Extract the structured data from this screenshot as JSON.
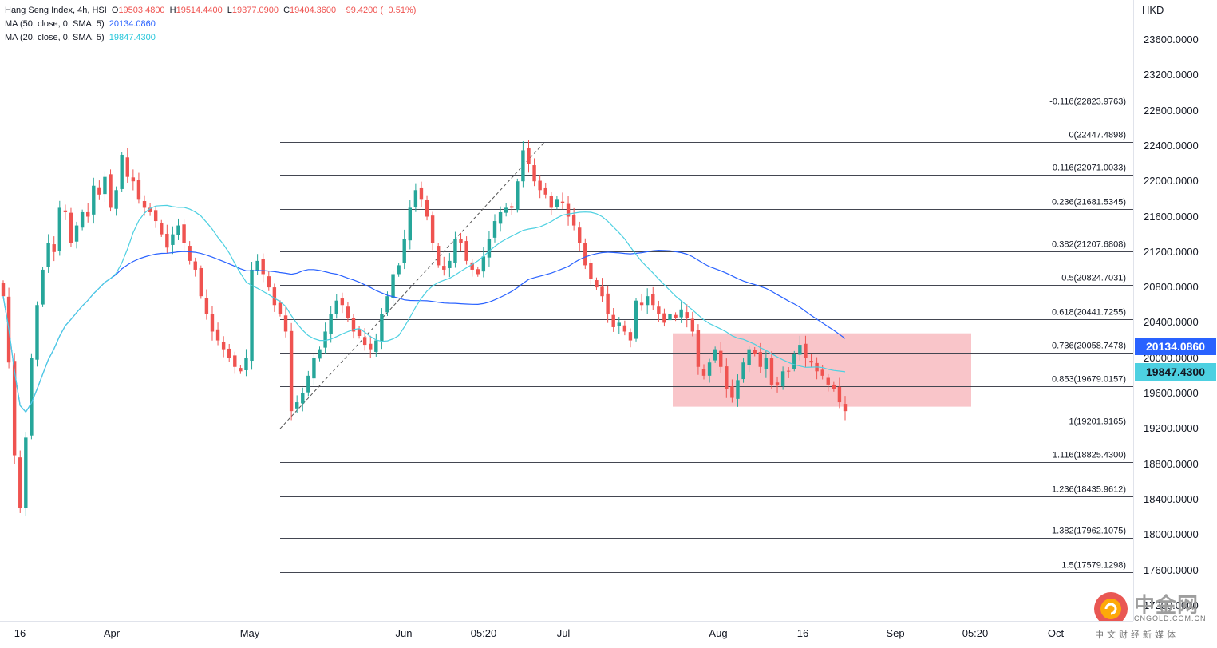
{
  "legend": {
    "title": "Hang Seng Index, 4h, HSI",
    "ohlc": [
      {
        "k": "O",
        "v": "19503.4800"
      },
      {
        "k": "H",
        "v": "19514.4400"
      },
      {
        "k": "L",
        "v": "19377.0900"
      },
      {
        "k": "C",
        "v": "19404.3600"
      }
    ],
    "change": "−99.4200 (−0.51%)",
    "ma50_label": "MA (50, close, 0, SMA, 5)",
    "ma50_value": "20134.0860",
    "ma20_label": "MA (20, close, 0, SMA, 5)",
    "ma20_value": "19847.4300"
  },
  "price_axis": {
    "unit": "HKD",
    "ticks": [
      "23600.0000",
      "23200.0000",
      "22800.0000",
      "22400.0000",
      "22000.0000",
      "21600.0000",
      "21200.0000",
      "20800.0000",
      "20400.0000",
      "20000.0000",
      "19600.0000",
      "19200.0000",
      "18800.0000",
      "18400.0000",
      "18000.0000",
      "17600.0000",
      "17200.0000"
    ],
    "tag_ma50": "20134.0860",
    "tag_ma20": "19847.4300"
  },
  "time_axis": {
    "labels": [
      "16",
      "Apr",
      "May",
      "Jun",
      "05:20",
      "Jul",
      "Aug",
      "16",
      "Sep",
      "05:20",
      "Oct"
    ]
  },
  "watermark": {
    "brand_cn": "中金网",
    "url": "CNGOLD.COM.CN",
    "sub_cn": "中文财经新媒体"
  },
  "colors": {
    "up": "#26a69a",
    "down": "#ef5350",
    "ma50": "#2962ff",
    "ma20": "#4dd0e1",
    "zone": "#f8bbbf"
  },
  "chart_data": {
    "type": "candlestick",
    "title": "Hang Seng Index, 4h, HSI",
    "ylabel": "HKD",
    "ylim": [
      17100,
      23800
    ],
    "x_labels": [
      "16",
      "Apr",
      "May",
      "Jun",
      "05:20",
      "Jul",
      "Aug",
      "16",
      "Sep",
      "05:20",
      "Oct"
    ],
    "fibonacci": [
      {
        "label": "-0.116(22823.9763)",
        "value": 22823.9763
      },
      {
        "label": "0(22447.4898)",
        "value": 22447.4898
      },
      {
        "label": "0.116(22071.0033)",
        "value": 22071.0033
      },
      {
        "label": "0.236(21681.5345)",
        "value": 21681.5345
      },
      {
        "label": "0.382(21207.6808)",
        "value": 21207.6808
      },
      {
        "label": "0.5(20824.7031)",
        "value": 20824.7031
      },
      {
        "label": "0.618(20441.7255)",
        "value": 20441.7255
      },
      {
        "label": "0.736(20058.7478)",
        "value": 20058.7478
      },
      {
        "label": "0.853(19679.0157)",
        "value": 19679.0157
      },
      {
        "label": "1(19201.9165)",
        "value": 19201.9165
      },
      {
        "label": "1.116(18825.4300)",
        "value": 18825.43
      },
      {
        "label": "1.236(18435.9612)",
        "value": 18435.9612
      },
      {
        "label": "1.382(17962.1075)",
        "value": 17962.1075
      },
      {
        "label": "1.5(17579.1298)",
        "value": 17579.1298
      }
    ],
    "zone": {
      "from_price": 20280,
      "to_price": 19450
    },
    "series": [
      {
        "name": "MA (50, close, 0, SMA, 5)",
        "last": 20134.086
      },
      {
        "name": "MA (20, close, 0, SMA, 5)",
        "last": 19847.43
      }
    ],
    "closes": [
      20700,
      19950,
      18900,
      18300,
      19100,
      20000,
      20600,
      21000,
      21300,
      21200,
      21700,
      21650,
      21300,
      21500,
      21650,
      21600,
      21950,
      21850,
      22050,
      21700,
      21900,
      22300,
      22050,
      22000,
      21800,
      21700,
      21650,
      21550,
      21400,
      21250,
      21400,
      21500,
      21300,
      21100,
      21000,
      20700,
      20500,
      20300,
      20200,
      20100,
      20000,
      19900,
      19850,
      20000,
      21000,
      21100,
      20950,
      20800,
      20600,
      20500,
      20300,
      19400,
      19500,
      19600,
      19800,
      20000,
      20100,
      20300,
      20500,
      20650,
      20600,
      20450,
      20300,
      20250,
      20150,
      20100,
      20200,
      20500,
      20700,
      20950,
      21050,
      21350,
      21700,
      21900,
      21800,
      21600,
      21300,
      21050,
      21000,
      21100,
      21350,
      21300,
      21100,
      21000,
      20950,
      21150,
      21350,
      21550,
      21650,
      21700,
      21700,
      22000,
      22350,
      22200,
      22000,
      21900,
      21850,
      21700,
      21800,
      21750,
      21600,
      21500,
      21300,
      21050,
      20900,
      20800,
      20700,
      20500,
      20350,
      20400,
      20300,
      20200,
      20650,
      20600,
      20700,
      20600,
      20500,
      20400,
      20500,
      20450,
      20550,
      20450,
      20300,
      19900,
      19800,
      19950,
      20100,
      19900,
      19650,
      19550,
      19750,
      19950,
      20100,
      20050,
      19900,
      20000,
      19700,
      19700,
      19850,
      19850,
      20050,
      20150,
      20000,
      19950,
      19850,
      19800,
      19700,
      19650,
      19500,
      19400
    ]
  }
}
